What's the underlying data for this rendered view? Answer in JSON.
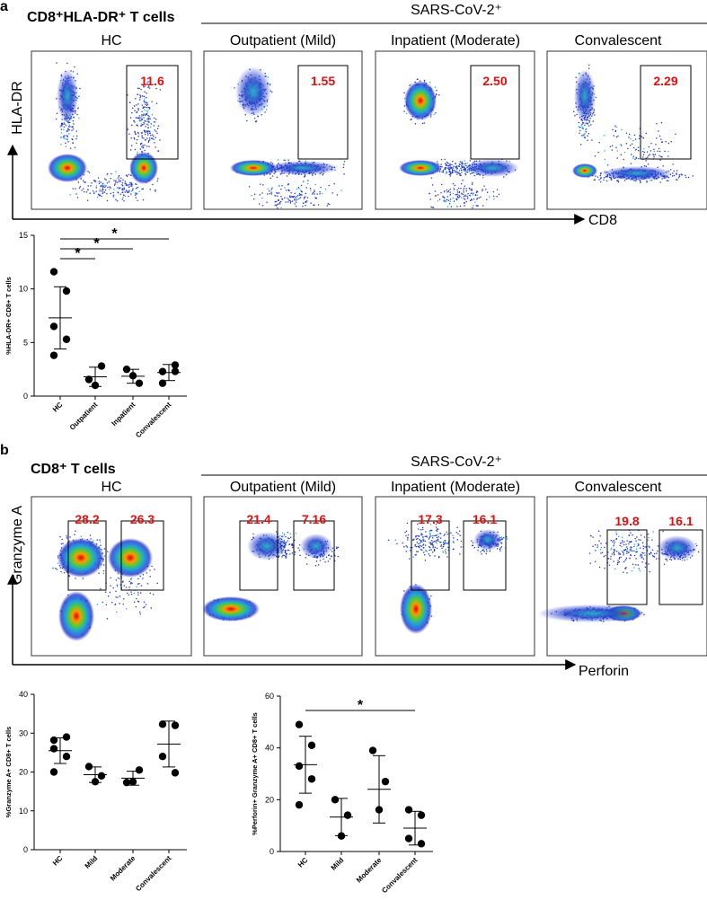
{
  "panel_a": {
    "letter": "a",
    "title": "CD8⁺HLA-DR⁺ T cells",
    "group_header": "SARS-CoV-2⁺",
    "plot_titles": [
      "HC",
      "Outpatient (Mild)",
      "Inpatient (Moderate)",
      "Convalescent"
    ],
    "gates": [
      "11.6",
      "1.55",
      "2.50",
      "2.29"
    ],
    "y_axis": "HLA-DR",
    "x_axis": "CD8"
  },
  "panel_b": {
    "letter": "b",
    "title": "CD8⁺ T cells",
    "group_header": "SARS-CoV-2⁺",
    "plot_titles": [
      "HC",
      "Outpatient (Mild)",
      "Inpatient (Moderate)",
      "Convalescent"
    ],
    "gates": [
      [
        "28.2",
        "26.3"
      ],
      [
        "21.4",
        "7.16"
      ],
      [
        "17.3",
        "16.1"
      ],
      [
        "19.8",
        "16.1"
      ]
    ],
    "y_axis": "Granzyme A",
    "x_axis": "Perforin"
  },
  "chart_data": [
    {
      "type": "dotplot",
      "y_label": "%HLA-DR+ CD8+ T cells",
      "ylim": [
        0,
        15
      ],
      "yticks": [
        0,
        5,
        10,
        15
      ],
      "groups": [
        {
          "label": "HC",
          "values": [
            11.6,
            9.8,
            6.5,
            5.3,
            3.8
          ],
          "mean": 7.3,
          "sd": 2.9
        },
        {
          "label": "Outpatient",
          "values": [
            1.55,
            2.8,
            1.0
          ],
          "mean": 1.8,
          "sd": 0.9
        },
        {
          "label": "Inpatient",
          "values": [
            2.5,
            1.2,
            1.9
          ],
          "mean": 1.85,
          "sd": 0.65
        },
        {
          "label": "Convalescent",
          "values": [
            2.29,
            2.9,
            1.2,
            2.3
          ],
          "mean": 2.2,
          "sd": 0.75
        }
      ],
      "annotations": [
        {
          "text": "*",
          "from": 0,
          "to": 1
        },
        {
          "text": "*",
          "from": 0,
          "to": 2
        },
        {
          "text": "*",
          "from": 0,
          "to": 3
        }
      ]
    },
    {
      "type": "dotplot",
      "y_label": "%Granzyme A+ CD8+ T cells",
      "ylim": [
        0,
        40
      ],
      "yticks": [
        0,
        10,
        20,
        30,
        40
      ],
      "groups": [
        {
          "label": "HC",
          "values": [
            28.2,
            29,
            26,
            24,
            20
          ],
          "mean": 25.5,
          "sd": 3.3
        },
        {
          "label": "Mild",
          "values": [
            21.4,
            19,
            17.5
          ],
          "mean": 19.3,
          "sd": 2
        },
        {
          "label": "Moderate",
          "values": [
            17.3,
            20.5,
            17.5
          ],
          "mean": 18.4,
          "sd": 1.8
        },
        {
          "label": "Convalescent",
          "values": [
            32.3,
            32,
            24,
            19.8
          ],
          "mean": 27.2,
          "sd": 5.9
        }
      ],
      "annotations": []
    },
    {
      "type": "dotplot",
      "y_label": "%Perforin+ Granzyme A+ CD8+ T cells",
      "ylim": [
        0,
        60
      ],
      "yticks": [
        0,
        20,
        40,
        60
      ],
      "groups": [
        {
          "label": "HC",
          "values": [
            49,
            41,
            33,
            28,
            18
          ],
          "mean": 33.5,
          "sd": 11
        },
        {
          "label": "Mild",
          "values": [
            20,
            14,
            6
          ],
          "mean": 13.3,
          "sd": 7.2
        },
        {
          "label": "Moderate",
          "values": [
            39,
            27,
            16.1
          ],
          "mean": 24,
          "sd": 13
        },
        {
          "label": "Convalescent",
          "values": [
            16.1,
            14,
            5,
            3
          ],
          "mean": 9,
          "sd": 6.5
        }
      ],
      "annotations": [
        {
          "text": "*",
          "from": 0,
          "to": 3
        }
      ]
    }
  ]
}
